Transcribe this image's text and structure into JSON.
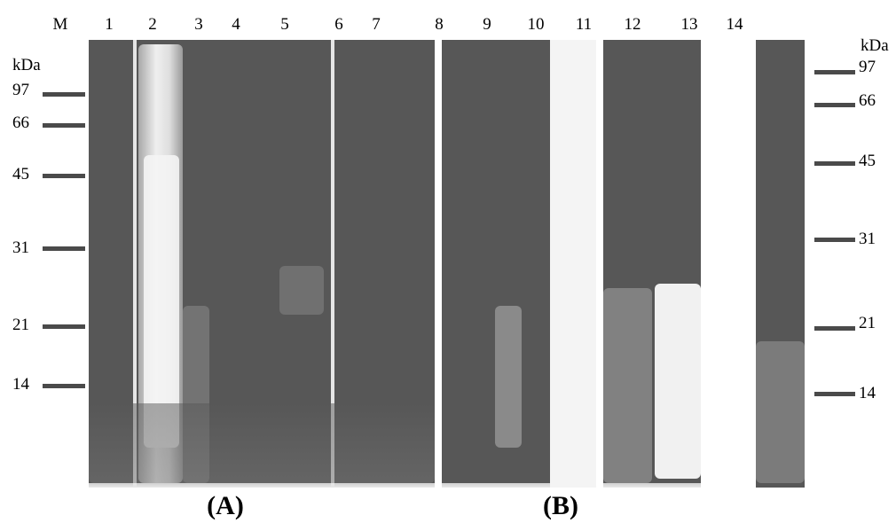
{
  "lanes_top": [
    "M",
    "1",
    "2",
    "3",
    "4",
    "5",
    "6",
    "7",
    "8",
    "9",
    "10",
    "11",
    "12",
    "13",
    "14"
  ],
  "markers_left": {
    "unit": "kDa",
    "values": [
      "97",
      "66",
      "45",
      "31",
      "21",
      "14"
    ]
  },
  "markers_right": {
    "unit": "kDa",
    "values": [
      "97",
      "66",
      "45",
      "31",
      "21",
      "14"
    ]
  },
  "panels": [
    "(A)",
    "(B)"
  ],
  "colors": {
    "gel_dark": "#575757",
    "gel_light": "#f2f2f2",
    "marker_band": "#4a4a4a"
  }
}
